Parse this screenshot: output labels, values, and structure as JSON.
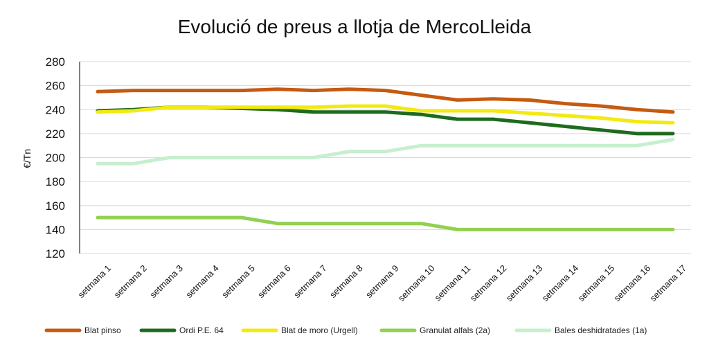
{
  "chart_data": {
    "type": "line",
    "title": "Evolució de preus a llotja de MercoLleida",
    "xlabel": "",
    "ylabel": "€/Tn",
    "ylim": [
      120,
      280
    ],
    "yticks": [
      120,
      140,
      160,
      180,
      200,
      220,
      240,
      260,
      280
    ],
    "grid": true,
    "legend_position": "bottom",
    "categories": [
      "setmana 1",
      "setmana 2",
      "setmana 3",
      "setmana 4",
      "setmana 5",
      "setmana 6",
      "setmana 7",
      "setmana 8",
      "setmana 9",
      "setmana 10",
      "setmana 11",
      "setmana 12",
      "setmana 13",
      "setmana 14",
      "setmana 15",
      "setmana 16",
      "setmana 17"
    ],
    "series": [
      {
        "name": "Blat pinso",
        "color": "#C55A11",
        "values": [
          255,
          256,
          256,
          256,
          256,
          257,
          256,
          257,
          256,
          252,
          248,
          249,
          248,
          245,
          243,
          240,
          238
        ]
      },
      {
        "name": "Ordi P.E. 64",
        "color": "#1E6B1E",
        "values": [
          239,
          240,
          242,
          242,
          241,
          240,
          238,
          238,
          238,
          236,
          232,
          232,
          229,
          226,
          223,
          220,
          220
        ]
      },
      {
        "name": "Blat de moro (Urgell)",
        "color": "#F2EA10",
        "values": [
          238,
          239,
          242,
          242,
          242,
          242,
          242,
          243,
          243,
          239,
          239,
          239,
          237,
          235,
          233,
          230,
          229
        ]
      },
      {
        "name": "Granulat alfals (2a)",
        "color": "#92D050",
        "values": [
          150,
          150,
          150,
          150,
          150,
          145,
          145,
          145,
          145,
          145,
          140,
          140,
          140,
          140,
          140,
          140,
          140
        ]
      },
      {
        "name": "Bales deshidratades (1a)",
        "color": "#C6EFCE",
        "values": [
          195,
          195,
          200,
          200,
          200,
          200,
          200,
          205,
          205,
          210,
          210,
          210,
          210,
          210,
          210,
          210,
          215
        ]
      }
    ]
  }
}
